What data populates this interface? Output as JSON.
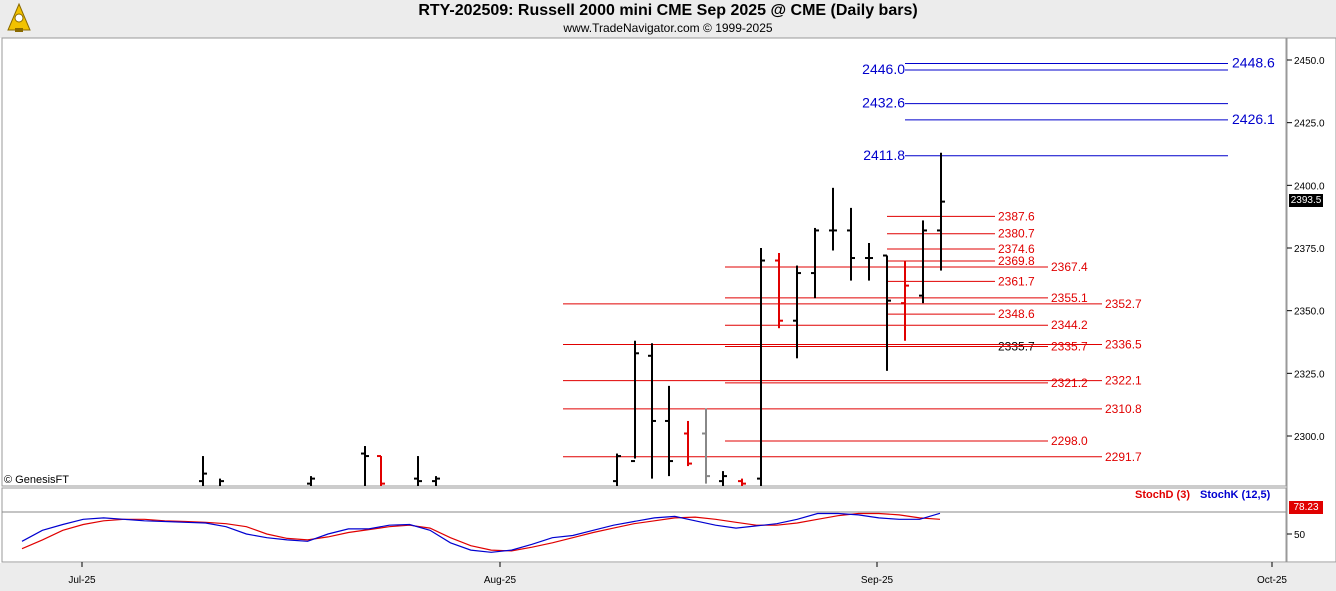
{
  "header": {
    "title": "RTY-202509:  Russell 2000 mini CME Sep 2025 @ CME  (Daily bars)",
    "subtitle": "www.TradeNavigator.com © 1999-2025",
    "logo_icon": "trade-navigator-logo-icon"
  },
  "credit": "© GenesisFT",
  "last_price_tag": "2393.5",
  "stoch_tag": "78.23",
  "chart_data": [
    {
      "type": "ohlc",
      "price_axis": {
        "ticks": [
          "2450.0",
          "2425.0",
          "2400.0",
          "2375.0",
          "2350.0",
          "2325.0",
          "2300.0"
        ]
      },
      "time_axis": {
        "labels": [
          "Jul-25",
          "Aug-25",
          "Sep-25",
          "Oct-25"
        ]
      },
      "bars": [
        {
          "h": 2292,
          "l": 2280,
          "o": 2282,
          "c": 2285,
          "color": "black"
        },
        {
          "h": 2283,
          "l": 2280,
          "o": 2280,
          "c": 2282,
          "color": "black"
        },
        {
          "h": 2284,
          "l": 2280,
          "o": 2281,
          "c": 2283,
          "color": "black"
        },
        {
          "h": 2296,
          "l": 2280,
          "o": 2293,
          "c": 2292,
          "color": "black"
        },
        {
          "h": 2292,
          "l": 2280,
          "o": 2292,
          "c": 2281,
          "color": "red"
        },
        {
          "h": 2292,
          "l": 2280,
          "o": 2283,
          "c": 2282,
          "color": "black"
        },
        {
          "h": 2284,
          "l": 2280,
          "o": 2282,
          "c": 2283,
          "color": "black"
        },
        {
          "h": 2293,
          "l": 2280,
          "o": 2282,
          "c": 2292,
          "color": "black"
        },
        {
          "h": 2338,
          "l": 2291,
          "o": 2290,
          "c": 2333,
          "color": "black"
        },
        {
          "h": 2337,
          "l": 2283,
          "o": 2332,
          "c": 2306,
          "color": "black"
        },
        {
          "h": 2320,
          "l": 2284,
          "o": 2306,
          "c": 2290,
          "color": "black"
        },
        {
          "h": 2306,
          "l": 2288,
          "o": 2301,
          "c": 2289,
          "color": "red"
        },
        {
          "h": 2311,
          "l": 2281,
          "o": 2301,
          "c": 2284,
          "color": "gray"
        },
        {
          "h": 2286,
          "l": 2280,
          "o": 2282,
          "c": 2284,
          "color": "black"
        },
        {
          "h": 2283,
          "l": 2280,
          "o": 2282,
          "c": 2281,
          "color": "red"
        },
        {
          "h": 2375,
          "l": 2280,
          "o": 2283,
          "c": 2370,
          "color": "black"
        },
        {
          "h": 2373,
          "l": 2343,
          "o": 2370,
          "c": 2346,
          "color": "red"
        },
        {
          "h": 2368,
          "l": 2331,
          "o": 2346,
          "c": 2365,
          "color": "black"
        },
        {
          "h": 2383,
          "l": 2355,
          "o": 2365,
          "c": 2382,
          "color": "black"
        },
        {
          "h": 2399,
          "l": 2374,
          "o": 2382,
          "c": 2382,
          "color": "black"
        },
        {
          "h": 2391,
          "l": 2362,
          "o": 2382,
          "c": 2371,
          "color": "black"
        },
        {
          "h": 2377,
          "l": 2362,
          "o": 2371,
          "c": 2371,
          "color": "black"
        },
        {
          "h": 2372,
          "l": 2326,
          "o": 2372,
          "c": 2354,
          "color": "black"
        },
        {
          "h": 2370,
          "l": 2338,
          "o": 2353,
          "c": 2360,
          "color": "red"
        },
        {
          "h": 2386,
          "l": 2353,
          "o": 2356,
          "c": 2382,
          "color": "black"
        },
        {
          "h": 2413,
          "l": 2366,
          "o": 2382,
          "c": 2393.5,
          "color": "black"
        }
      ],
      "levels": [
        {
          "value": 2448.6,
          "label": "2448.6",
          "color": "blue",
          "side": "right"
        },
        {
          "value": 2446.0,
          "label": "2446.0",
          "color": "blue",
          "side": "left"
        },
        {
          "value": 2432.6,
          "label": "2432.6",
          "color": "blue",
          "side": "left"
        },
        {
          "value": 2426.1,
          "label": "2426.1",
          "color": "blue",
          "side": "right"
        },
        {
          "value": 2411.8,
          "label": "2411.8",
          "color": "blue",
          "side": "left"
        },
        {
          "value": 2387.6,
          "label": "2387.6",
          "color": "red",
          "side": "mid"
        },
        {
          "value": 2380.7,
          "label": "2380.7",
          "color": "red",
          "side": "mid"
        },
        {
          "value": 2374.6,
          "label": "2374.6",
          "color": "red",
          "side": "mid"
        },
        {
          "value": 2369.8,
          "label": "2369.8",
          "color": "red",
          "side": "mid"
        },
        {
          "value": 2367.4,
          "label": "2367.4",
          "color": "red",
          "side": "far"
        },
        {
          "value": 2361.7,
          "label": "2361.7",
          "color": "red",
          "side": "mid"
        },
        {
          "value": 2355.1,
          "label": "2355.1",
          "color": "red",
          "side": "far"
        },
        {
          "value": 2352.7,
          "label": "2352.7",
          "color": "red",
          "side": "farther"
        },
        {
          "value": 2348.6,
          "label": "2348.6",
          "color": "red",
          "side": "mid"
        },
        {
          "value": 2344.2,
          "label": "2344.2",
          "color": "red",
          "side": "far"
        },
        {
          "value": 2335.7,
          "label": "2335.7",
          "color": "black",
          "side": "mid"
        },
        {
          "value": 2335.7,
          "label": "2335.7",
          "color": "red",
          "side": "far"
        },
        {
          "value": 2336.5,
          "label": "2336.5",
          "color": "red",
          "side": "farther"
        },
        {
          "value": 2321.2,
          "label": "2321.2",
          "color": "red",
          "side": "far"
        },
        {
          "value": 2322.1,
          "label": "2322.1",
          "color": "red",
          "side": "farther"
        },
        {
          "value": 2310.8,
          "label": "2310.8",
          "color": "red",
          "side": "farther"
        },
        {
          "value": 2298.0,
          "label": "2298.0",
          "color": "red",
          "side": "far"
        },
        {
          "value": 2291.7,
          "label": "2291.7",
          "color": "red",
          "side": "farther"
        }
      ]
    },
    {
      "type": "line",
      "series": [
        {
          "name": "StochD (3)",
          "color": "#e00000",
          "values": [
            30,
            42,
            55,
            63,
            68,
            70,
            70,
            68,
            67,
            66,
            64,
            60,
            50,
            44,
            42,
            46,
            52,
            56,
            60,
            62,
            58,
            45,
            34,
            28,
            27,
            32,
            38,
            45,
            52,
            58,
            64,
            68,
            72,
            73,
            70,
            66,
            62,
            62,
            65,
            70,
            75,
            78,
            78,
            76,
            72,
            70
          ]
        },
        {
          "name": "StochK (12,5)",
          "color": "#0000d0",
          "values": [
            40,
            55,
            63,
            70,
            72,
            70,
            68,
            67,
            66,
            65,
            60,
            50,
            45,
            42,
            40,
            50,
            57,
            57,
            62,
            63,
            55,
            38,
            28,
            25,
            28,
            36,
            45,
            48,
            55,
            62,
            67,
            72,
            74,
            68,
            62,
            58,
            61,
            64,
            70,
            78,
            78,
            76,
            72,
            70,
            70,
            78.23
          ]
        }
      ],
      "axis": {
        "ticks": [
          "50"
        ]
      },
      "legend": "top-right"
    }
  ]
}
